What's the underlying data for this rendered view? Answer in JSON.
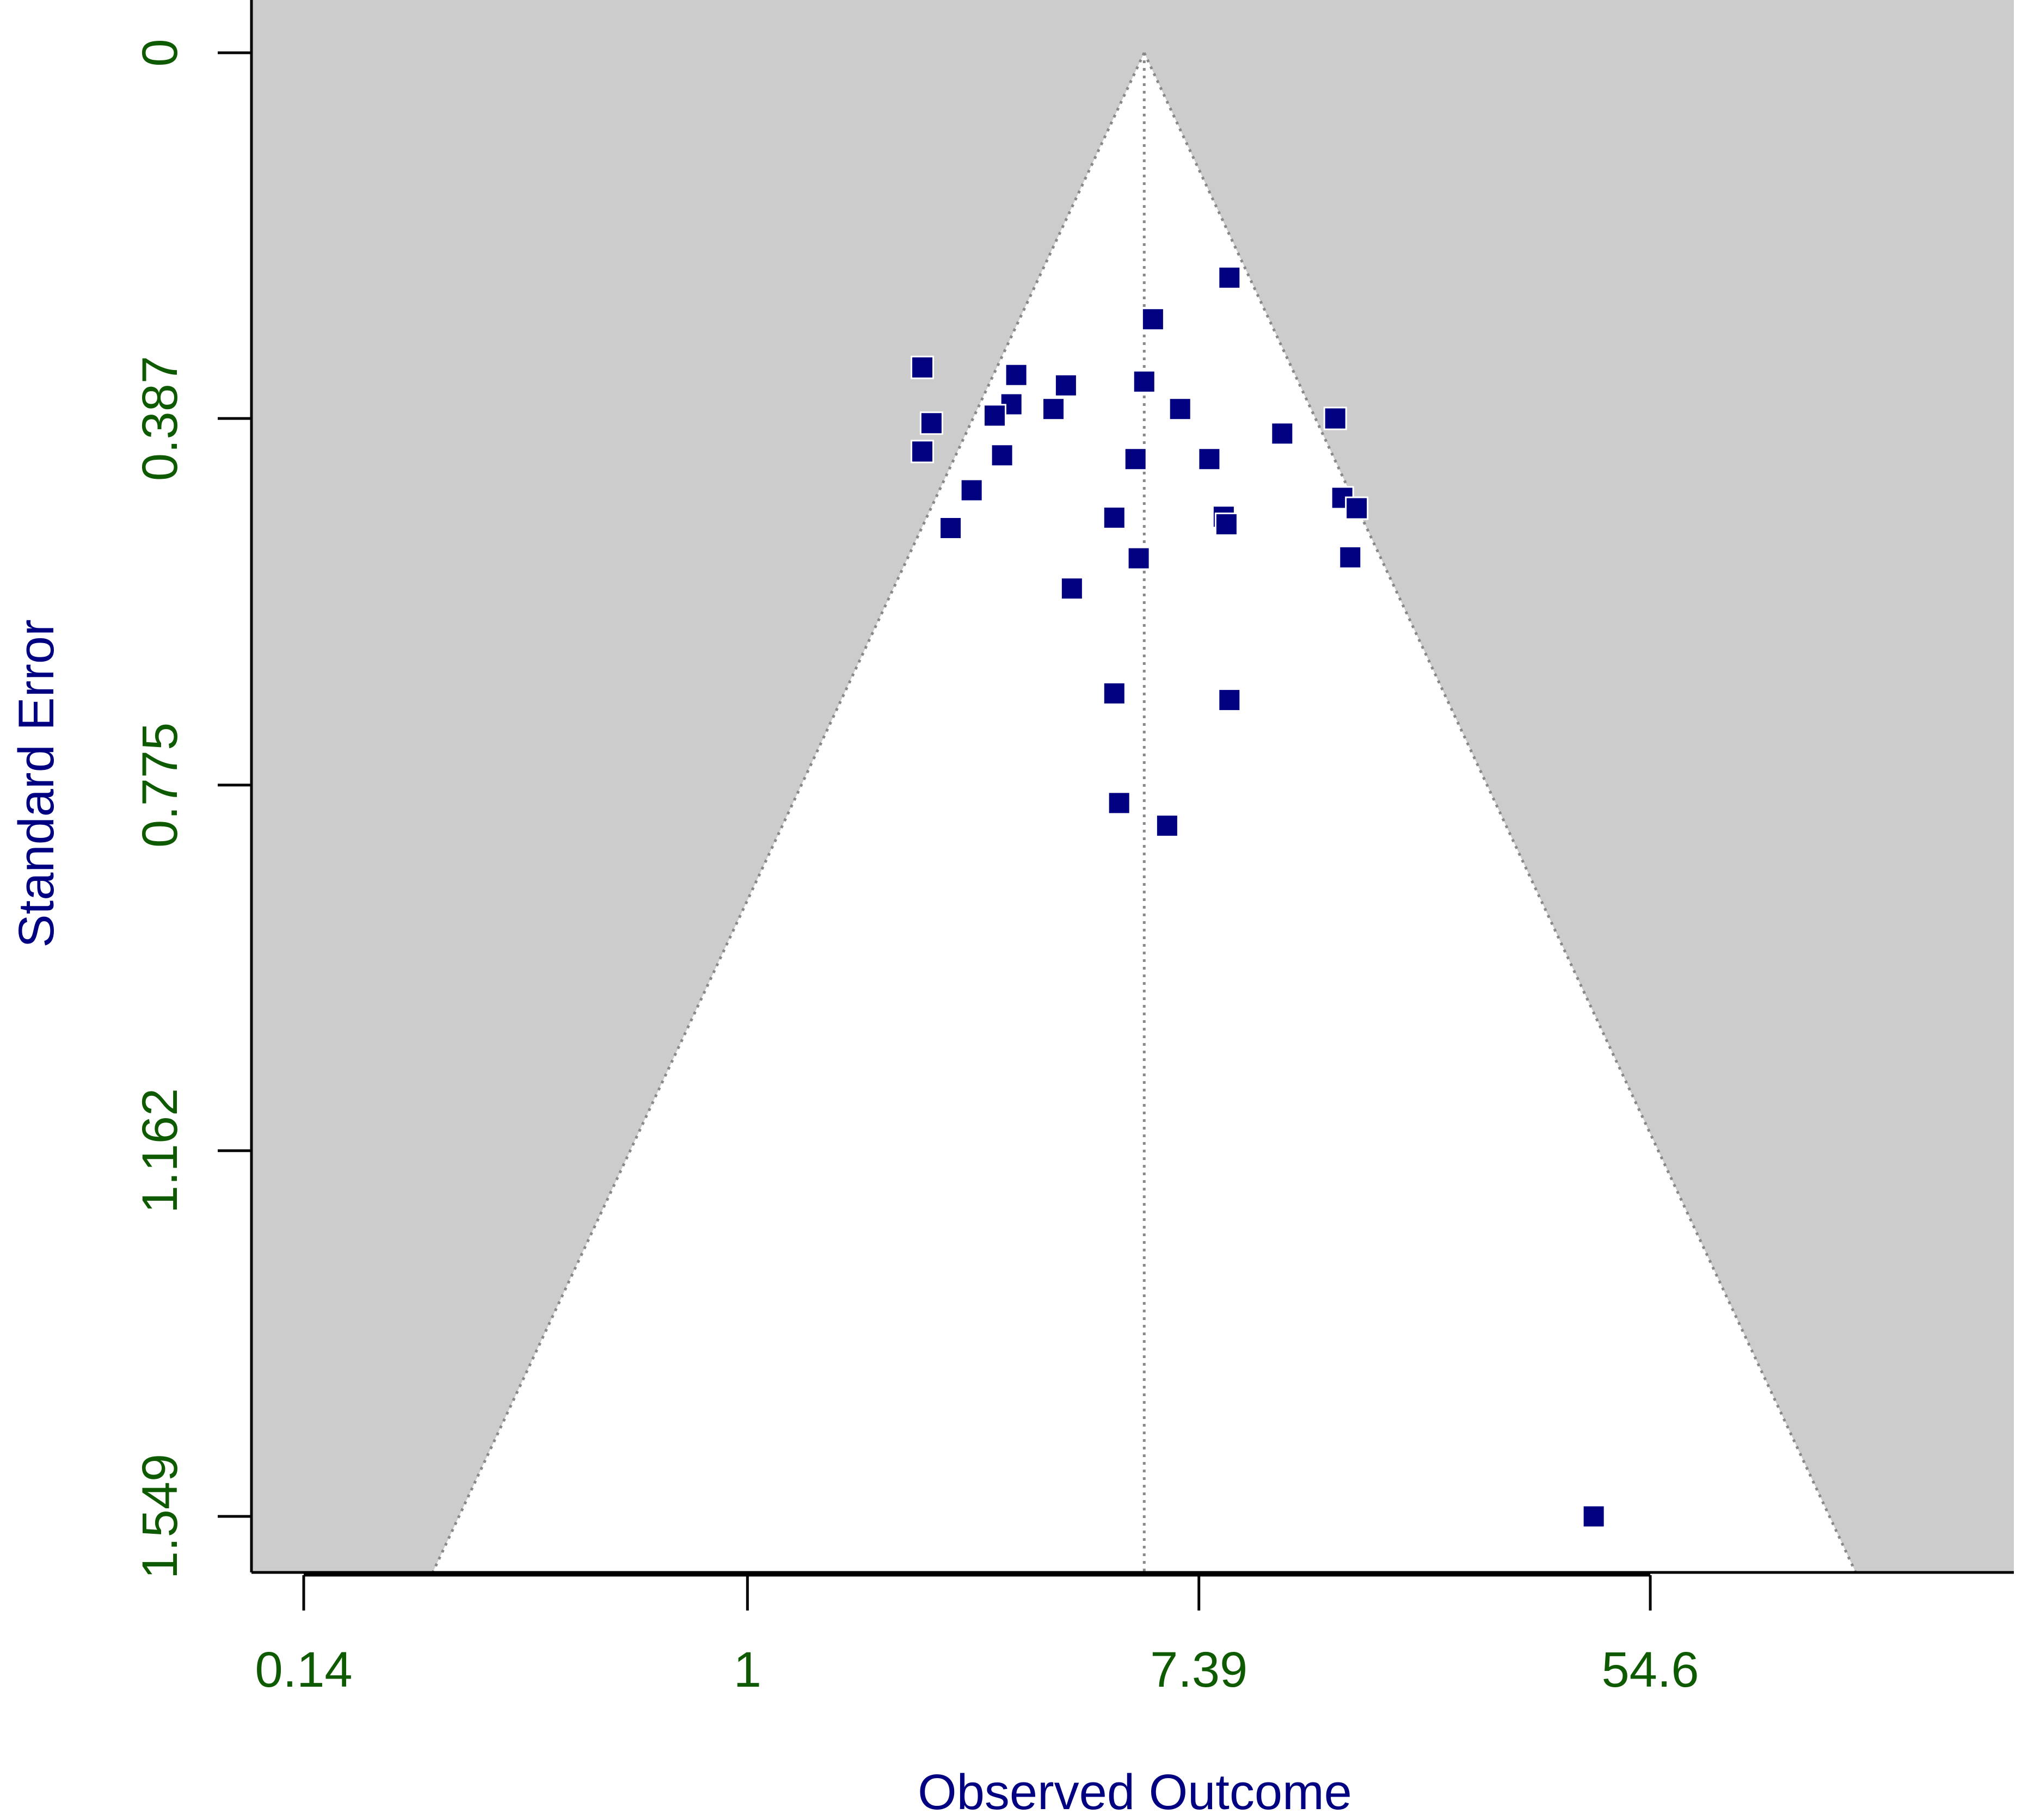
{
  "chart_data": {
    "type": "scatter",
    "title": "",
    "xlabel": "Observed Outcome",
    "ylabel": "Standard Error",
    "x_scale": "log",
    "x_ticks": [
      0.14,
      1,
      7.39,
      54.6
    ],
    "x_tick_labels": [
      "0.14",
      "1",
      "7.39",
      "54.6"
    ],
    "xlim": [
      0.0878,
      148.4
    ],
    "y_ticks": [
      0,
      0.387,
      0.775,
      1.162,
      1.549
    ],
    "y_tick_labels": [
      "0",
      "0.387",
      "0.775",
      "1.162",
      "1.549"
    ],
    "ylim": [
      1.608,
      -0.053
    ],
    "y_reversed": true,
    "funnel": {
      "center": 5.8,
      "apex_se": 0,
      "z": 1.96
    },
    "points": [
      {
        "x": 8.46,
        "y": 0.238
      },
      {
        "x": 6.03,
        "y": 0.282
      },
      {
        "x": 2.17,
        "y": 0.333
      },
      {
        "x": 3.29,
        "y": 0.341
      },
      {
        "x": 4.1,
        "y": 0.352
      },
      {
        "x": 5.8,
        "y": 0.348
      },
      {
        "x": 6.8,
        "y": 0.377
      },
      {
        "x": 3.22,
        "y": 0.372
      },
      {
        "x": 3.88,
        "y": 0.377
      },
      {
        "x": 2.99,
        "y": 0.384
      },
      {
        "x": 2.26,
        "y": 0.392
      },
      {
        "x": 13.52,
        "y": 0.387
      },
      {
        "x": 10.69,
        "y": 0.403
      },
      {
        "x": 2.17,
        "y": 0.422
      },
      {
        "x": 3.09,
        "y": 0.426
      },
      {
        "x": 5.58,
        "y": 0.43
      },
      {
        "x": 7.74,
        "y": 0.43
      },
      {
        "x": 2.7,
        "y": 0.463
      },
      {
        "x": 13.95,
        "y": 0.471
      },
      {
        "x": 14.87,
        "y": 0.482
      },
      {
        "x": 5.08,
        "y": 0.492
      },
      {
        "x": 8.25,
        "y": 0.491
      },
      {
        "x": 8.35,
        "y": 0.499
      },
      {
        "x": 2.46,
        "y": 0.503
      },
      {
        "x": 5.66,
        "y": 0.535
      },
      {
        "x": 14.45,
        "y": 0.534
      },
      {
        "x": 4.21,
        "y": 0.567
      },
      {
        "x": 5.08,
        "y": 0.678
      },
      {
        "x": 8.46,
        "y": 0.685
      },
      {
        "x": 5.19,
        "y": 0.794
      },
      {
        "x": 6.42,
        "y": 0.818
      },
      {
        "x": 42.5,
        "y": 1.549
      }
    ],
    "grid": false,
    "legend": "none"
  },
  "colors": {
    "background": "#ffffff",
    "shaded_region": "#cccccc",
    "funnel_lines": "#888888",
    "points": "#000080",
    "tick_labels": "#0d5a00",
    "axis_titles": "#000080",
    "axis": "#000000"
  }
}
